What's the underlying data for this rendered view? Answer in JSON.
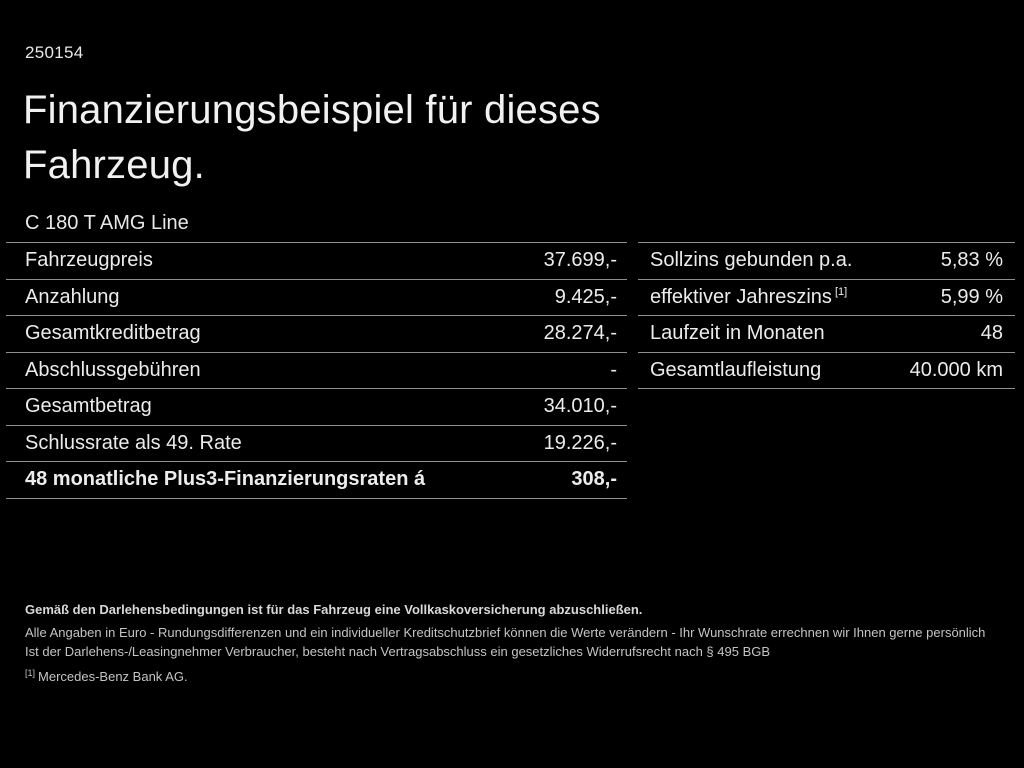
{
  "page": {
    "background": "#000000",
    "text_color": "#ececec",
    "divider_color": "#8f8f8f",
    "document_number": "250154",
    "title": "Finanzierungsbeispiel für dieses Fahrzeug.",
    "vehicle_model": "C 180 T AMG Line"
  },
  "left_table": {
    "rows": [
      {
        "label": "Fahrzeugpreis",
        "value": "37.699,-"
      },
      {
        "label": "Anzahlung",
        "value": "9.425,-"
      },
      {
        "label": "Gesamtkreditbetrag",
        "value": "28.274,-"
      },
      {
        "label": "Abschlussgebühren",
        "value": "-"
      },
      {
        "label": "Gesamtbetrag",
        "value": "34.010,-"
      },
      {
        "label": "Schlussrate als 49. Rate",
        "value": "19.226,-"
      },
      {
        "label": "48 monatliche Plus3-Finanzierungsraten á",
        "value": "308,-"
      }
    ]
  },
  "right_table": {
    "rows": [
      {
        "label": "Sollzins gebunden p.a.",
        "value": "5,83 %"
      },
      {
        "label": "effektiver Jahreszins",
        "label_sup": "[1]",
        "value": "5,99 %"
      },
      {
        "label": "Laufzeit in Monaten",
        "value": "48"
      },
      {
        "label": "Gesamtlaufleistung",
        "value": "40.000 km"
      }
    ]
  },
  "footer": {
    "line1": "Gemäß den Darlehensbedingungen ist für das Fahrzeug eine Vollkaskoversicherung abzuschließen.",
    "line2": "Alle Angaben in Euro - Rundungsdifferenzen und ein individueller Kreditschutzbrief können die Werte verändern - Ihr Wunschrate errechnen wir Ihnen gerne persönlich",
    "line3": "Ist der Darlehens-/Leasingnehmer Verbraucher, besteht nach Vertragsabschluss ein gesetzliches Widerrufsrecht nach § 495 BGB",
    "footnote_sup": "[1]",
    "footnote_text": "Mercedes-Benz Bank AG."
  }
}
